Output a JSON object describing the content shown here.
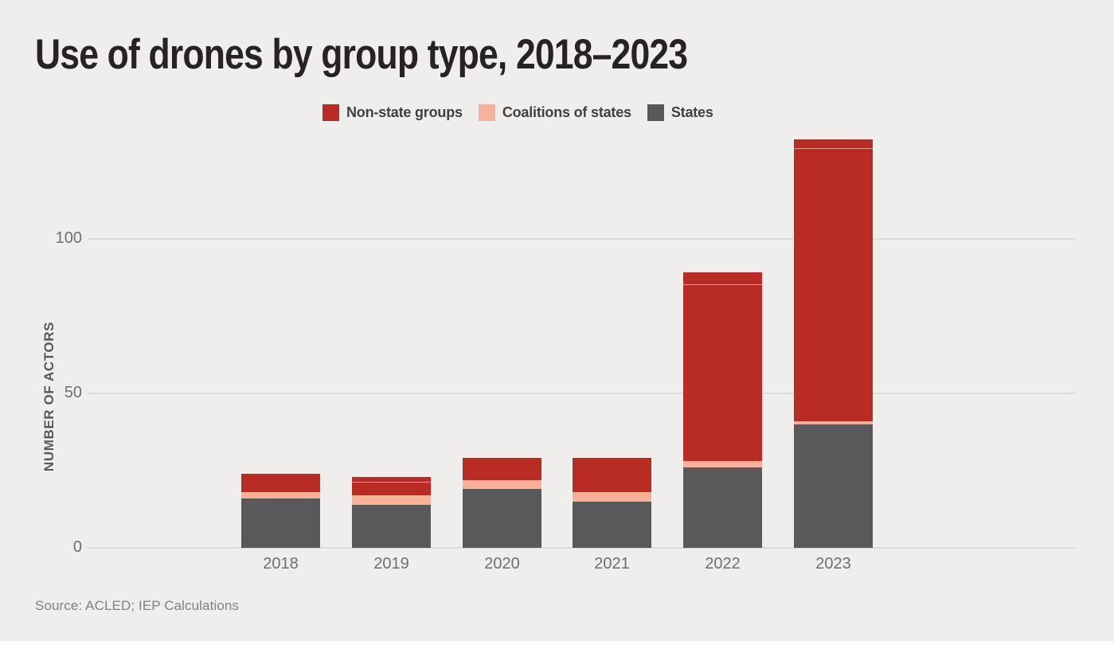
{
  "title": "Use of drones by group type, 2018–2023",
  "legend": [
    {
      "label": "Non-state groups",
      "color": "#b92c23"
    },
    {
      "label": "Coalitions of states",
      "color": "#f6b199"
    },
    {
      "label": "States",
      "color": "#59595b"
    }
  ],
  "source": "Source: ACLED; IEP Calculations",
  "chart_data": {
    "type": "bar",
    "stacked": true,
    "title": "Use of drones by group type, 2018–2023",
    "categories": [
      "2018",
      "2019",
      "2020",
      "2021",
      "2022",
      "2023"
    ],
    "series": [
      {
        "name": "States",
        "color": "#59595b",
        "values": [
          16,
          14,
          19,
          15,
          26,
          40
        ]
      },
      {
        "name": "Coalitions of states",
        "color": "#f6b199",
        "values": [
          2,
          3,
          3,
          3,
          2,
          1
        ]
      },
      {
        "name": "Non-state groups",
        "color": "#b92c23",
        "values": [
          6,
          6,
          7,
          11,
          61,
          91
        ]
      }
    ],
    "totals": [
      24,
      23,
      29,
      29,
      89,
      132
    ],
    "non_state_top_strip_units": [
      0,
      2,
      0,
      0,
      4,
      3
    ],
    "xlabel": "",
    "ylabel": "NUMBER OF ACTORS",
    "yticks": [
      0,
      50,
      100
    ],
    "ylim": [
      0,
      133
    ],
    "grid": "horizontal",
    "legend_position": "top"
  }
}
